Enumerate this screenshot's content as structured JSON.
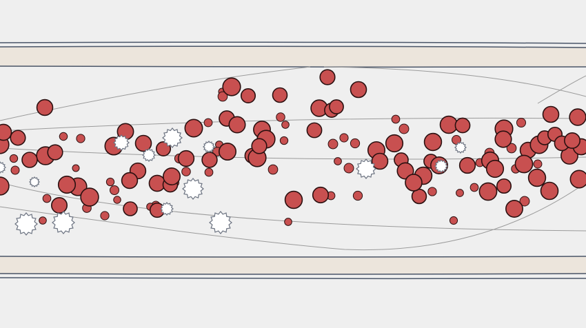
{
  "scene": {
    "type": "blood-vessel-simulation",
    "colors": {
      "background": "#efefef",
      "vessel_wall": "#ece5dc",
      "wall_outline": "#4a5568",
      "red_cell_fill": "#c85050",
      "red_cell_outline": "#2a1010",
      "platelet_fill": "#ffffff",
      "platelet_outline": "#6b7280",
      "flow_line": "#9a9a9a"
    },
    "entities": {
      "red_cells": "red-blood-cell",
      "platelets": "white-starburst-cell"
    }
  }
}
